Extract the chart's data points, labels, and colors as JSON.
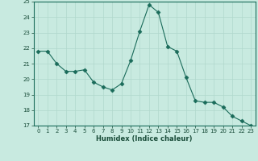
{
  "x": [
    0,
    1,
    2,
    3,
    4,
    5,
    6,
    7,
    8,
    9,
    10,
    11,
    12,
    13,
    14,
    15,
    16,
    17,
    18,
    19,
    20,
    21,
    22,
    23
  ],
  "y": [
    21.8,
    21.8,
    21.0,
    20.5,
    20.5,
    20.6,
    19.8,
    19.5,
    19.3,
    19.7,
    21.2,
    23.1,
    24.8,
    24.3,
    22.1,
    21.8,
    20.1,
    18.6,
    18.5,
    18.5,
    18.2,
    17.6,
    17.3,
    17.0
  ],
  "ylim": [
    17,
    25
  ],
  "xlim": [
    -0.5,
    23.5
  ],
  "yticks": [
    17,
    18,
    19,
    20,
    21,
    22,
    23,
    24,
    25
  ],
  "xticks": [
    0,
    1,
    2,
    3,
    4,
    5,
    6,
    7,
    8,
    9,
    10,
    11,
    12,
    13,
    14,
    15,
    16,
    17,
    18,
    19,
    20,
    21,
    22,
    23
  ],
  "xlabel": "Humidex (Indice chaleur)",
  "line_color": "#1a6b5a",
  "marker": "D",
  "marker_size": 2.5,
  "background_color": "#c8eae0",
  "grid_color": "#b0d8cc",
  "tick_label_color": "#1a4d3a",
  "xlabel_color": "#1a4d3a",
  "fig_width": 3.2,
  "fig_height": 2.0,
  "dpi": 100
}
